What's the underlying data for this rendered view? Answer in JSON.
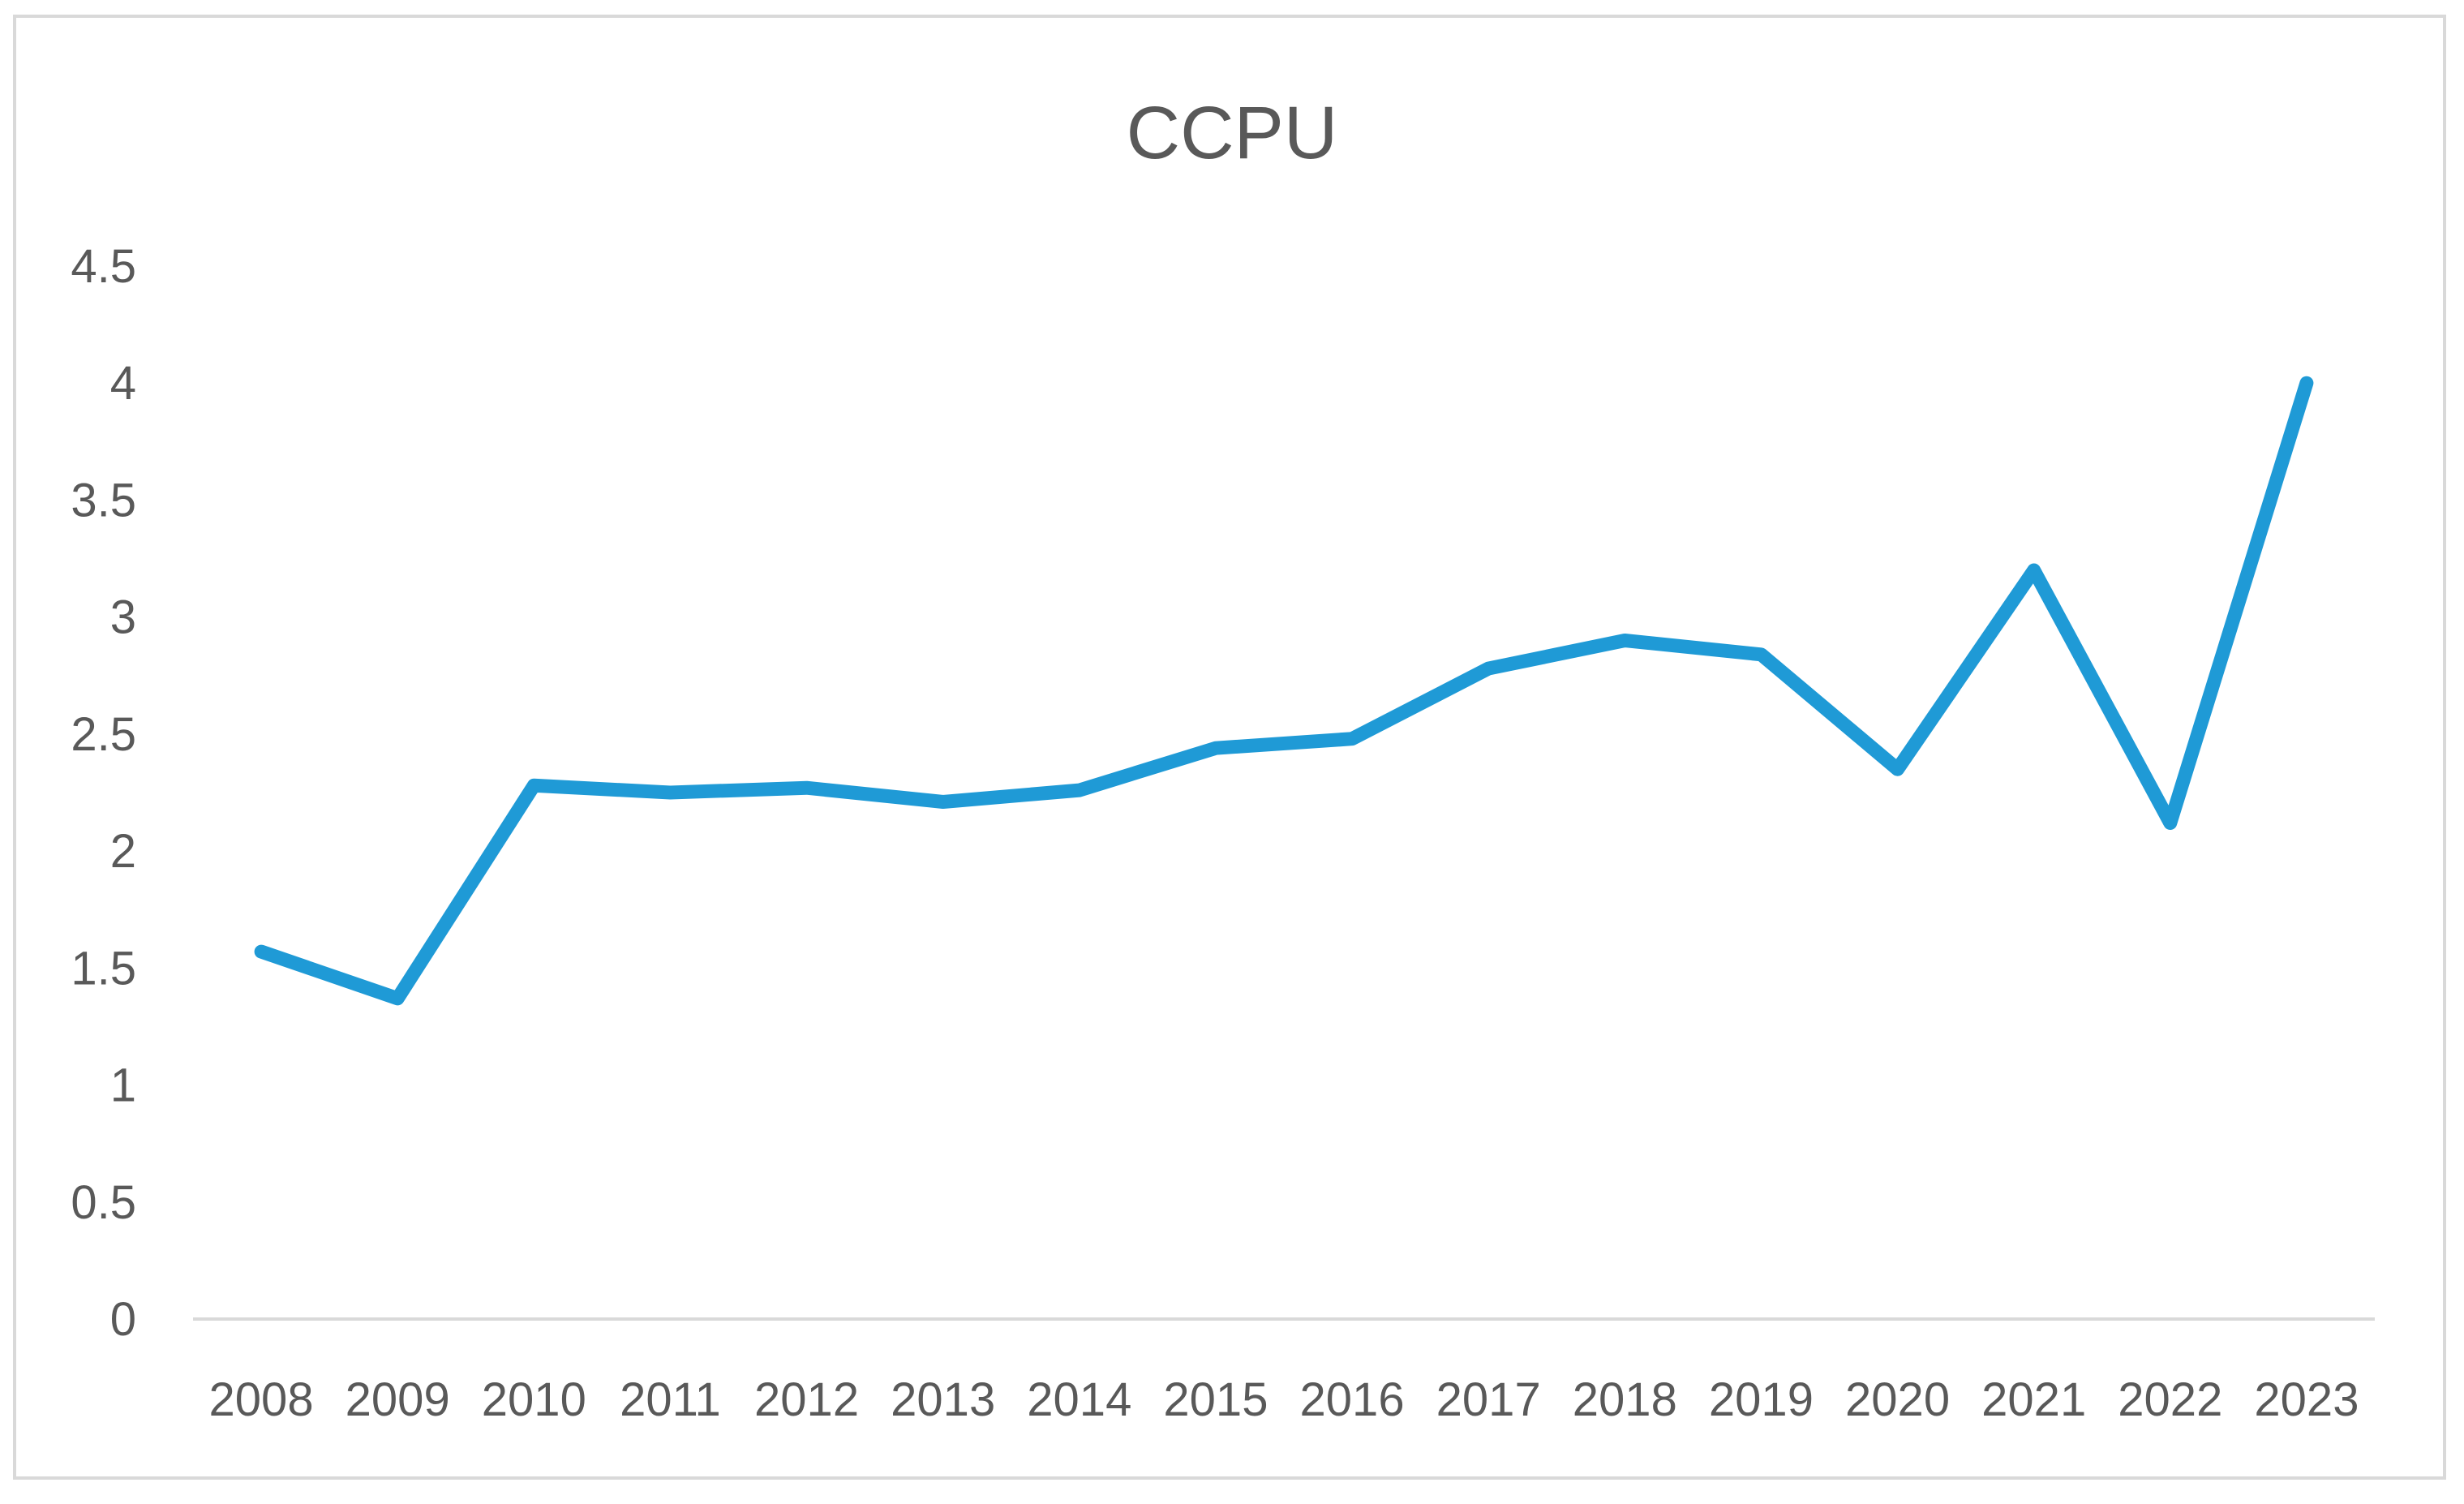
{
  "chart_data": {
    "type": "line",
    "title": "CCPU",
    "xlabel": "",
    "ylabel": "",
    "categories": [
      "2008",
      "2009",
      "2010",
      "2011",
      "2012",
      "2013",
      "2014",
      "2015",
      "2016",
      "2017",
      "2018",
      "2019",
      "2020",
      "2021",
      "2022",
      "2023"
    ],
    "series": [
      {
        "name": "",
        "values": [
          1.57,
          1.37,
          2.28,
          2.25,
          2.27,
          2.21,
          2.26,
          2.44,
          2.48,
          2.78,
          2.9,
          2.84,
          2.35,
          3.2,
          2.12,
          4.0
        ]
      }
    ],
    "ylim": [
      0,
      4.5
    ],
    "yticks": [
      "0",
      "0.5",
      "1",
      "1.5",
      "2",
      "2.5",
      "3",
      "3.5",
      "4",
      "4.5"
    ],
    "grid": false,
    "legend": "none",
    "colors": {
      "line": "#1f9ad6",
      "axis": "#d9d9d9",
      "text": "#595959"
    }
  }
}
